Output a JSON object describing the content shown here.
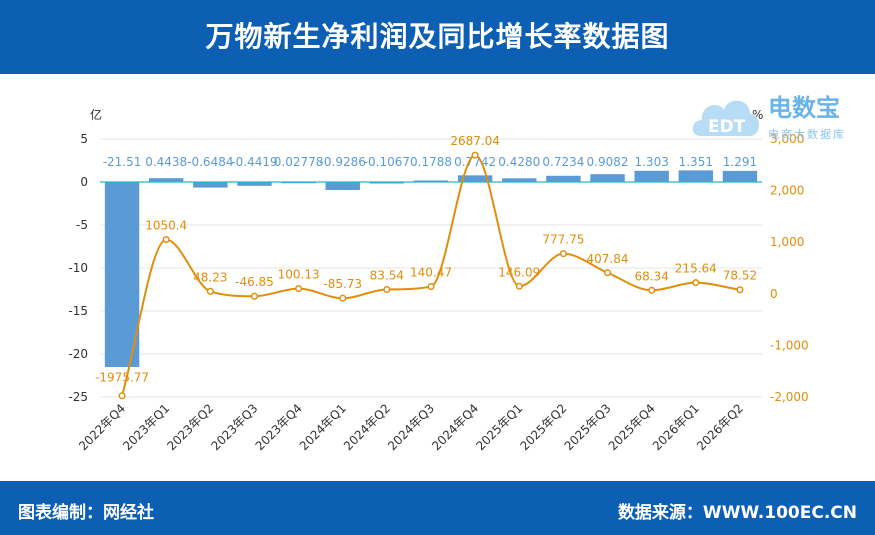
{
  "header": {
    "title": "万物新生净利润及同比增长率数据图"
  },
  "footer": {
    "credit": "图表编制：网经社",
    "source": "数据来源：WWW.100EC.CN"
  },
  "logo": {
    "brand": "电数宝",
    "tagline": "电商大数据库",
    "mark": "EDT"
  },
  "colors": {
    "header_bg": "#0d5fb3",
    "bar": "#5b9bd5",
    "line": "#e08e0b",
    "label_bar": "#5b9bd5",
    "label_line": "#e08e0b"
  },
  "chart_data": {
    "type": "bar",
    "categories": [
      "2022年Q4",
      "2023年Q1",
      "2023年Q2",
      "2023年Q3",
      "2023年Q4",
      "2024年Q1",
      "2024年Q2",
      "2024年Q3",
      "2024年Q4",
      "2025年Q1",
      "2025年Q2",
      "2025年Q3",
      "2025年Q4",
      "2026年Q1",
      "2026年Q2"
    ],
    "series": [
      {
        "type": "bar",
        "axis": "left",
        "values": [
          -21.51,
          0.4438,
          -0.6484,
          -0.4419,
          0.02778,
          -0.9286,
          -0.1067,
          0.1788,
          0.7742,
          0.428,
          0.7234,
          0.9082,
          1.303,
          1.351,
          1.291
        ],
        "labels": [
          "-21.51",
          "0.4438",
          "-0.6484",
          "-0.4419",
          "0.02778",
          "-0.9286",
          "-0.1067",
          "0.1788",
          "0.7742",
          "0.4280",
          "0.7234",
          "0.9082",
          "1.303",
          "1.351",
          "1.291"
        ]
      },
      {
        "type": "line",
        "axis": "right",
        "smooth": true,
        "values": [
          -1975.77,
          1050.4,
          48.23,
          -46.85,
          100.13,
          -85.73,
          83.54,
          140.47,
          2687.04,
          146.09,
          777.75,
          407.84,
          68.34,
          215.64,
          78.52
        ],
        "labels": [
          "-1975.77",
          "1050.4",
          "48.23",
          "-46.85",
          "100.13",
          "-85.73",
          "83.54",
          "140.47",
          "2687.04",
          "146.09",
          "777.75",
          "407.84",
          "68.34",
          "215.64",
          "78.52"
        ]
      }
    ],
    "ylabel": "亿",
    "y2label": "%",
    "ylim": [
      -25,
      5
    ],
    "y2lim": [
      -2000,
      3000
    ],
    "yticks": [
      "5",
      "0",
      "-5",
      "-10",
      "-15",
      "-20",
      "-25"
    ],
    "y2ticks": [
      "3,000",
      "2,000",
      "1,000",
      "0",
      "-1,000",
      "-2,000"
    ],
    "grid": true
  }
}
